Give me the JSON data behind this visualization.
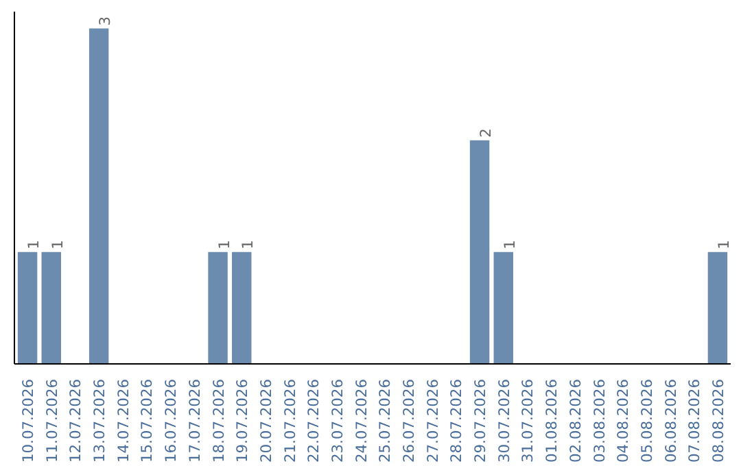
{
  "chart_data": {
    "type": "bar",
    "categories": [
      "10.07.2026",
      "11.07.2026",
      "12.07.2026",
      "13.07.2026",
      "14.07.2026",
      "15.07.2026",
      "16.07.2026",
      "17.07.2026",
      "18.07.2026",
      "19.07.2026",
      "20.07.2026",
      "21.07.2026",
      "22.07.2026",
      "23.07.2026",
      "24.07.2026",
      "25.07.2026",
      "26.07.2026",
      "27.07.2026",
      "28.07.2026",
      "29.07.2026",
      "30.07.2026",
      "31.07.2026",
      "01.08.2026",
      "02.08.2026",
      "03.08.2026",
      "04.08.2026",
      "05.08.2026",
      "06.08.2026",
      "07.08.2026",
      "08.08.2026"
    ],
    "values": [
      1,
      1,
      0,
      3,
      0,
      0,
      0,
      0,
      1,
      1,
      0,
      0,
      0,
      0,
      0,
      0,
      0,
      0,
      0,
      2,
      1,
      0,
      0,
      0,
      0,
      0,
      0,
      0,
      0,
      1
    ],
    "value_labels": [
      "1",
      "1",
      null,
      "3",
      null,
      null,
      null,
      null,
      "1",
      "1",
      null,
      null,
      null,
      null,
      null,
      null,
      null,
      null,
      null,
      "2",
      "1",
      null,
      null,
      null,
      null,
      null,
      null,
      null,
      null,
      "1"
    ],
    "color": "#6c8caf",
    "grid": false
  }
}
